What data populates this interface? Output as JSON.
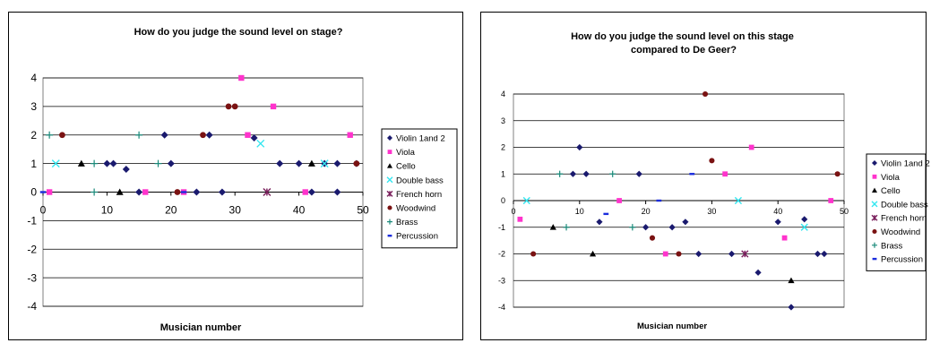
{
  "colors": {
    "Violin 1and 2": "#1a1a6e",
    "Viola": "#ff33cc",
    "Cello": "#000000",
    "Double bass": "#33e6f0",
    "French horn": "#7a1f5c",
    "Woodwind": "#7a1212",
    "Brass": "#1a8a7a",
    "Percussion": "#1a2cdd"
  },
  "markers": {
    "Violin 1and 2": "diamond",
    "Viola": "square",
    "Cello": "triangle",
    "Double bass": "x",
    "French horn": "star",
    "Woodwind": "circle",
    "Brass": "plus",
    "Percussion": "dash"
  },
  "chart_data": [
    {
      "type": "scatter",
      "title": "How do you judge the sound level on stage?",
      "xlabel": "Musician number",
      "ylabel": "",
      "xlim": [
        0,
        50
      ],
      "ylim": [
        -4,
        4
      ],
      "x_ticks": [
        0,
        10,
        20,
        30,
        40,
        50
      ],
      "y_ticks": [
        4,
        3,
        2,
        1,
        0,
        -1,
        -2,
        -3,
        -4
      ],
      "grid": true,
      "legend": "right",
      "series": [
        {
          "name": "Violin 1and 2",
          "points": [
            [
              10,
              1
            ],
            [
              11,
              1
            ],
            [
              13,
              0.8
            ],
            [
              15,
              0
            ],
            [
              19,
              2
            ],
            [
              20,
              1
            ],
            [
              24,
              0
            ],
            [
              26,
              2
            ],
            [
              28,
              0
            ],
            [
              33,
              1.9
            ],
            [
              37,
              1
            ],
            [
              40,
              1
            ],
            [
              42,
              0
            ],
            [
              44,
              1
            ],
            [
              46,
              1
            ],
            [
              46,
              0
            ],
            [
              49,
              1
            ]
          ]
        },
        {
          "name": "Viola",
          "points": [
            [
              1,
              0
            ],
            [
              16,
              0
            ],
            [
              22,
              0
            ],
            [
              31,
              4
            ],
            [
              32,
              2
            ],
            [
              36,
              3
            ],
            [
              41,
              0
            ],
            [
              48,
              2
            ]
          ]
        },
        {
          "name": "Cello",
          "points": [
            [
              6,
              1
            ],
            [
              12,
              0
            ],
            [
              42,
              1
            ]
          ]
        },
        {
          "name": "Double bass",
          "points": [
            [
              2,
              1
            ],
            [
              34,
              1.7
            ],
            [
              44,
              1
            ]
          ]
        },
        {
          "name": "French horn",
          "points": [
            [
              35,
              0
            ]
          ]
        },
        {
          "name": "Woodwind",
          "points": [
            [
              3,
              2
            ],
            [
              21,
              0
            ],
            [
              25,
              2
            ],
            [
              29,
              3
            ],
            [
              30,
              3
            ],
            [
              49,
              1
            ]
          ]
        },
        {
          "name": "Brass",
          "points": [
            [
              1,
              2
            ],
            [
              8,
              1
            ],
            [
              8,
              0
            ],
            [
              15,
              2
            ],
            [
              18,
              1
            ]
          ]
        },
        {
          "name": "Percussion",
          "points": [
            [
              0,
              0
            ],
            [
              22,
              0
            ]
          ]
        }
      ]
    },
    {
      "type": "scatter",
      "title": "How do you judge the sound level on this stage compared to De Geer?",
      "xlabel": "Musician number",
      "ylabel": "",
      "xlim": [
        0,
        50
      ],
      "ylim": [
        -4,
        4
      ],
      "x_ticks": [
        0,
        10,
        20,
        30,
        40,
        50
      ],
      "y_ticks": [
        4,
        3,
        2,
        1,
        0,
        -1,
        -2,
        -3,
        -4
      ],
      "grid": true,
      "legend": "right",
      "series": [
        {
          "name": "Violin 1and 2",
          "points": [
            [
              9,
              1
            ],
            [
              10,
              2
            ],
            [
              11,
              1
            ],
            [
              13,
              -0.8
            ],
            [
              19,
              1
            ],
            [
              20,
              -1
            ],
            [
              24,
              -1
            ],
            [
              26,
              -0.8
            ],
            [
              28,
              -2
            ],
            [
              33,
              -2
            ],
            [
              37,
              -2.7
            ],
            [
              40,
              -0.8
            ],
            [
              42,
              -4
            ],
            [
              44,
              -0.7
            ],
            [
              46,
              -2
            ],
            [
              47,
              -2
            ]
          ]
        },
        {
          "name": "Viola",
          "points": [
            [
              1,
              -0.7
            ],
            [
              16,
              0
            ],
            [
              23,
              -2
            ],
            [
              32,
              1
            ],
            [
              36,
              2
            ],
            [
              41,
              -1.4
            ],
            [
              48,
              0
            ]
          ]
        },
        {
          "name": "Cello",
          "points": [
            [
              6,
              -1
            ],
            [
              12,
              -2
            ],
            [
              42,
              -3
            ]
          ]
        },
        {
          "name": "Double bass",
          "points": [
            [
              2,
              0
            ],
            [
              34,
              0
            ],
            [
              44,
              -1
            ]
          ]
        },
        {
          "name": "French horn",
          "points": [
            [
              35,
              -2
            ]
          ]
        },
        {
          "name": "Woodwind",
          "points": [
            [
              3,
              -2
            ],
            [
              21,
              -1.4
            ],
            [
              25,
              -2
            ],
            [
              29,
              4
            ],
            [
              30,
              1.5
            ],
            [
              49,
              1
            ]
          ]
        },
        {
          "name": "Brass",
          "points": [
            [
              7,
              1
            ],
            [
              8,
              -1
            ],
            [
              15,
              1
            ],
            [
              18,
              -1
            ]
          ]
        },
        {
          "name": "Percussion",
          "points": [
            [
              14,
              -0.5
            ],
            [
              22,
              0
            ],
            [
              27,
              1
            ]
          ]
        }
      ]
    }
  ]
}
